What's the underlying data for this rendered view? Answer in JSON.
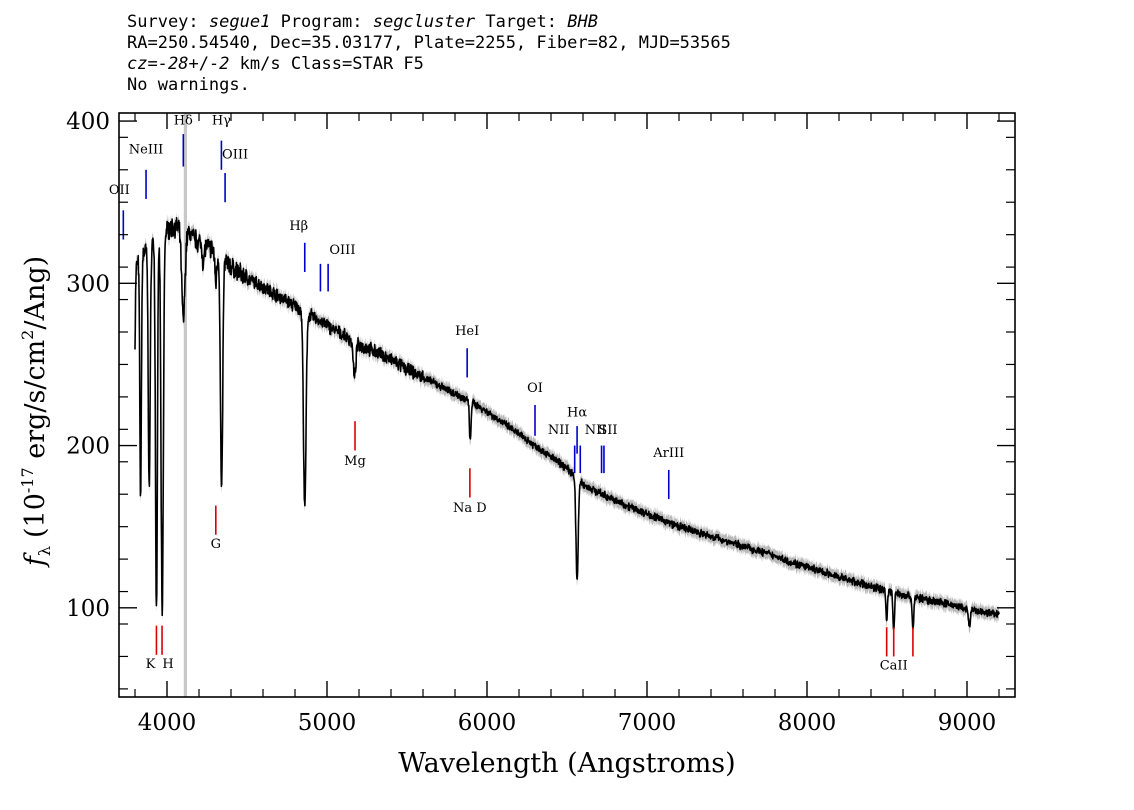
{
  "header": {
    "survey_label": "Survey:",
    "survey": "segue1",
    "program_label": "Program:",
    "program": "segcluster",
    "target_label": "Target:",
    "target": "BHB",
    "line2": "RA=250.54540, Dec=35.03177, Plate=2255, Fiber=82, MJD=53565",
    "cz_symbol": "cz",
    "cz_eq": "=",
    "cz_value": "-28",
    "cz_pm": "+/-",
    "cz_err": "2",
    "cz_unit": " km/s Class=STAR F5",
    "line4": "No warnings."
  },
  "chart_data": {
    "type": "line",
    "xlabel": "Wavelength (Angstroms)",
    "ylabel_f": "f",
    "ylabel_sub": "λ",
    "ylabel_pre": "(10",
    "ylabel_exp": "-17",
    "ylabel_mid": " erg/s/cm",
    "ylabel_exp2": "2",
    "ylabel_post": "/Ang)",
    "xlim": [
      3700,
      9300
    ],
    "ylim": [
      45,
      405
    ],
    "xticks": [
      4000,
      5000,
      6000,
      7000,
      8000,
      9000
    ],
    "yticks": [
      100,
      200,
      300,
      400
    ],
    "masked_region": [
      4105,
      4125
    ],
    "colors": {
      "flux": "#000000",
      "error": "#b8b8b8",
      "emission": "#0000cc",
      "absorption": "#dd0000",
      "mask": "#c8c8c8"
    },
    "continuum": [
      [
        3800,
        310
      ],
      [
        3850,
        318
      ],
      [
        3900,
        325
      ],
      [
        3950,
        330
      ],
      [
        4000,
        333
      ],
      [
        4050,
        335
      ],
      [
        4100,
        333
      ],
      [
        4150,
        330
      ],
      [
        4200,
        325
      ],
      [
        4300,
        320
      ],
      [
        4400,
        310
      ],
      [
        4500,
        303
      ],
      [
        4600,
        298
      ],
      [
        4700,
        292
      ],
      [
        4800,
        286
      ],
      [
        4900,
        280
      ],
      [
        5000,
        274
      ],
      [
        5100,
        268
      ],
      [
        5200,
        262
      ],
      [
        5300,
        258
      ],
      [
        5400,
        253
      ],
      [
        5500,
        247
      ],
      [
        5600,
        242
      ],
      [
        5700,
        237
      ],
      [
        5800,
        232
      ],
      [
        5900,
        227
      ],
      [
        6000,
        221
      ],
      [
        6100,
        214
      ],
      [
        6200,
        207
      ],
      [
        6300,
        200
      ],
      [
        6400,
        193
      ],
      [
        6500,
        186
      ],
      [
        6600,
        176
      ],
      [
        6700,
        171
      ],
      [
        6800,
        166
      ],
      [
        6900,
        162
      ],
      [
        7000,
        158
      ],
      [
        7100,
        154
      ],
      [
        7200,
        150
      ],
      [
        7300,
        147
      ],
      [
        7400,
        144
      ],
      [
        7500,
        141
      ],
      [
        7600,
        138
      ],
      [
        7700,
        135
      ],
      [
        7800,
        132
      ],
      [
        7900,
        128
      ],
      [
        8000,
        125
      ],
      [
        8100,
        122
      ],
      [
        8200,
        119
      ],
      [
        8300,
        116
      ],
      [
        8400,
        113
      ],
      [
        8500,
        111
      ],
      [
        8600,
        108
      ],
      [
        8700,
        106
      ],
      [
        8800,
        104
      ],
      [
        8900,
        102
      ],
      [
        9000,
        99
      ],
      [
        9100,
        97
      ],
      [
        9200,
        96
      ]
    ],
    "absorption_features": [
      {
        "center": 3798,
        "depth": 55,
        "width": 4
      },
      {
        "center": 3835,
        "depth": 145,
        "width": 5
      },
      {
        "center": 3889,
        "depth": 150,
        "width": 6
      },
      {
        "center": 3934,
        "depth": 230,
        "width": 6
      },
      {
        "center": 3970,
        "depth": 238,
        "width": 7
      },
      {
        "center": 4102,
        "depth": 55,
        "width": 10
      },
      {
        "center": 4227,
        "depth": 12,
        "width": 5
      },
      {
        "center": 4305,
        "depth": 18,
        "width": 6
      },
      {
        "center": 4341,
        "depth": 145,
        "width": 7
      },
      {
        "center": 4861,
        "depth": 122,
        "width": 8
      },
      {
        "center": 5172,
        "depth": 22,
        "width": 8
      },
      {
        "center": 5895,
        "depth": 25,
        "width": 5
      },
      {
        "center": 6563,
        "depth": 63,
        "width": 7
      },
      {
        "center": 8498,
        "depth": 18,
        "width": 5
      },
      {
        "center": 8542,
        "depth": 24,
        "width": 5
      },
      {
        "center": 8662,
        "depth": 20,
        "width": 5
      },
      {
        "center": 9015,
        "depth": 10,
        "width": 6
      }
    ],
    "emission_lines": [
      {
        "label": "OII",
        "x": 3727,
        "y_top": 345,
        "y_bot": 327,
        "label_y": 355,
        "label_dx": -4
      },
      {
        "label": "NeIII",
        "x": 3869,
        "y_top": 370,
        "y_bot": 352,
        "label_y": 380,
        "label_dx": 0
      },
      {
        "label": "Hδ",
        "x": 4102,
        "y_top": 392,
        "y_bot": 372,
        "label_y": 398,
        "label_dx": 0
      },
      {
        "label": "Hγ",
        "x": 4340,
        "y_top": 388,
        "y_bot": 370,
        "label_y": 398,
        "label_dx": 0
      },
      {
        "label": "OIII",
        "x": 4363,
        "y_top": 368,
        "y_bot": 350,
        "label_y": 377,
        "label_dx": 10
      },
      {
        "label": "Hβ",
        "x": 4861,
        "y_top": 325,
        "y_bot": 307,
        "label_y": 333,
        "label_dx": -6
      },
      {
        "label": "OIII",
        "x": 4959,
        "y_top": 312,
        "y_bot": 295,
        "label_y": 318,
        "label_dx": 22
      },
      {
        "label": "",
        "x": 5007,
        "y_top": 312,
        "y_bot": 295,
        "label_y": 0,
        "label_dx": 0
      },
      {
        "label": "HeI",
        "x": 5876,
        "y_top": 260,
        "y_bot": 242,
        "label_y": 268,
        "label_dx": 0
      },
      {
        "label": "OI",
        "x": 6300,
        "y_top": 225,
        "y_bot": 206,
        "label_y": 233,
        "label_dx": 0
      },
      {
        "label": "NII",
        "x": 6548,
        "y_top": 200,
        "y_bot": 183,
        "label_y": 207,
        "label_dx": -16
      },
      {
        "label": "Hα",
        "x": 6563,
        "y_top": 212,
        "y_bot": 195,
        "label_y": 218,
        "label_dx": 0
      },
      {
        "label": "",
        "x": 6583,
        "y_top": 200,
        "y_bot": 183,
        "label_y": 0,
        "label_dx": 0
      },
      {
        "label": "NII",
        "x": 6716,
        "y_top": 200,
        "y_bot": 183,
        "label_y": 207,
        "label_dx": -6
      },
      {
        "label": "SII",
        "x": 6731,
        "y_top": 200,
        "y_bot": 183,
        "label_y": 207,
        "label_dx": 4
      },
      {
        "label": "ArIII",
        "x": 7136,
        "y_top": 185,
        "y_bot": 167,
        "label_y": 193,
        "label_dx": 0
      }
    ],
    "absorption_lines": [
      {
        "label": "K",
        "x": 3934,
        "y_top": 89,
        "y_bot": 71,
        "label_y": 63,
        "label_dx": -6
      },
      {
        "label": "H",
        "x": 3969,
        "y_top": 89,
        "y_bot": 71,
        "label_y": 63,
        "label_dx": 6
      },
      {
        "label": "G",
        "x": 4305,
        "y_top": 163,
        "y_bot": 145,
        "label_y": 137,
        "label_dx": 0
      },
      {
        "label": "Mg",
        "x": 5175,
        "y_top": 215,
        "y_bot": 197,
        "label_y": 188,
        "label_dx": 0
      },
      {
        "label": "Na  D",
        "x": 5893,
        "y_top": 186,
        "y_bot": 168,
        "label_y": 159,
        "label_dx": 0
      },
      {
        "label": "",
        "x": 8498,
        "y_top": 88,
        "y_bot": 70,
        "label_y": 0,
        "label_dx": 0
      },
      {
        "label": "CaII",
        "x": 8542,
        "y_top": 88,
        "y_bot": 70,
        "label_y": 62,
        "label_dx": 0
      },
      {
        "label": "",
        "x": 8662,
        "y_top": 88,
        "y_bot": 70,
        "label_y": 0,
        "label_dx": 0
      }
    ]
  }
}
